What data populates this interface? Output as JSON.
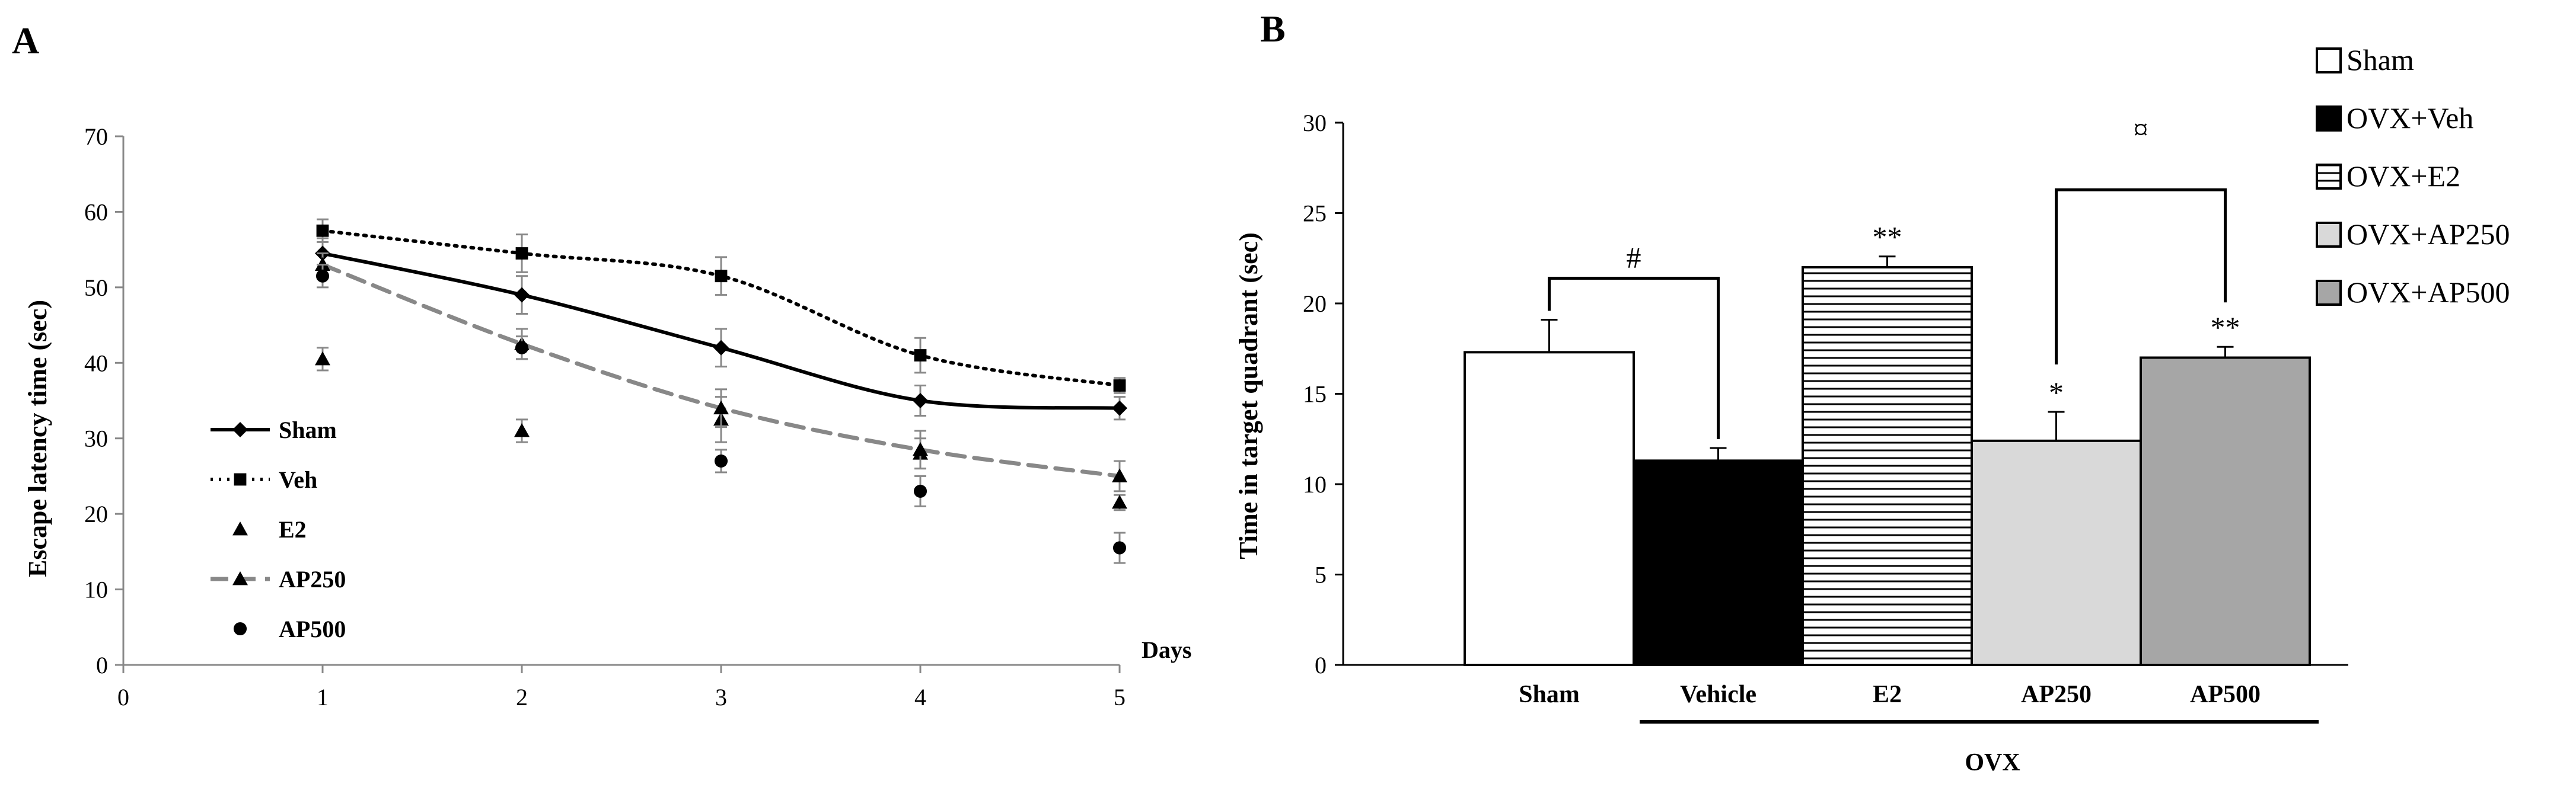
{
  "chart_data": [
    {
      "panel": "A",
      "type": "line",
      "title": "",
      "xlabel": "Days",
      "ylabel": "Escape latency time (sec)",
      "xlim": [
        0,
        5
      ],
      "ylim": [
        0,
        70
      ],
      "x_ticks": [
        0,
        1,
        2,
        3,
        4,
        5
      ],
      "y_ticks": [
        0,
        10,
        20,
        30,
        40,
        50,
        60,
        70
      ],
      "x": [
        1,
        2,
        3,
        4,
        5
      ],
      "legend_position": "left",
      "series": [
        {
          "name": "Sham",
          "values": [
            54.5,
            49,
            42,
            35,
            34
          ],
          "errors": [
            2,
            2.5,
            2.5,
            2,
            1.5
          ],
          "marker": "diamond",
          "line": "solid",
          "color": "#000000"
        },
        {
          "name": "Veh",
          "values": [
            57.5,
            54.5,
            51.5,
            41,
            37
          ],
          "errors": [
            1.5,
            2.5,
            2.5,
            2.3,
            1
          ],
          "marker": "square",
          "line": "dotted",
          "color": "#000000"
        },
        {
          "name": "E2",
          "values": [
            40.5,
            31,
            32.5,
            28,
            21.5
          ],
          "errors": [
            1.5,
            1.5,
            3,
            2,
            1
          ],
          "marker": "triangle",
          "line": "none",
          "color": "#000000"
        },
        {
          "name": "AP250",
          "values": [
            53,
            42.5,
            34,
            28.5,
            25
          ],
          "errors": [
            1.5,
            2,
            2.5,
            2.5,
            2
          ],
          "marker": "triangle",
          "line": "dashed",
          "color": "#888888"
        },
        {
          "name": "AP500",
          "values": [
            51.5,
            42,
            27,
            23,
            15.5
          ],
          "errors": [
            1.5,
            1.5,
            1.5,
            2,
            2
          ],
          "marker": "circle",
          "line": "none",
          "color": "#000000"
        }
      ]
    },
    {
      "panel": "B",
      "type": "bar",
      "title": "",
      "xlabel": "",
      "ylabel": "Time in target quadrant (sec)",
      "ylim": [
        0,
        30
      ],
      "y_ticks": [
        0,
        5,
        10,
        15,
        20,
        25,
        30
      ],
      "categories": [
        "Sham",
        "Vehicle",
        "E2",
        "AP250",
        "AP500"
      ],
      "values": [
        17.3,
        11.3,
        22,
        12.4,
        17
      ],
      "errors": [
        1.8,
        0.7,
        0.6,
        1.6,
        0.6
      ],
      "stars": [
        "",
        "",
        "**",
        "*",
        "**"
      ],
      "group_label": "OVX",
      "brackets": [
        {
          "from": "Sham",
          "to": "Vehicle",
          "label": "#"
        },
        {
          "from": "AP250",
          "to": "AP500",
          "label": "¤"
        }
      ],
      "legend_position": "top-right",
      "legend": [
        {
          "label": "Sham",
          "fill": "#ffffff",
          "pattern": "none"
        },
        {
          "label": "OVX+Veh",
          "fill": "#000000",
          "pattern": "none"
        },
        {
          "label": "OVX+E2",
          "fill": "#ffffff",
          "pattern": "horizontal-lines"
        },
        {
          "label": "OVX+AP250",
          "fill": "#d9d9d9",
          "pattern": "none"
        },
        {
          "label": "OVX+AP500",
          "fill": "#a6a6a6",
          "pattern": "none"
        }
      ]
    }
  ]
}
